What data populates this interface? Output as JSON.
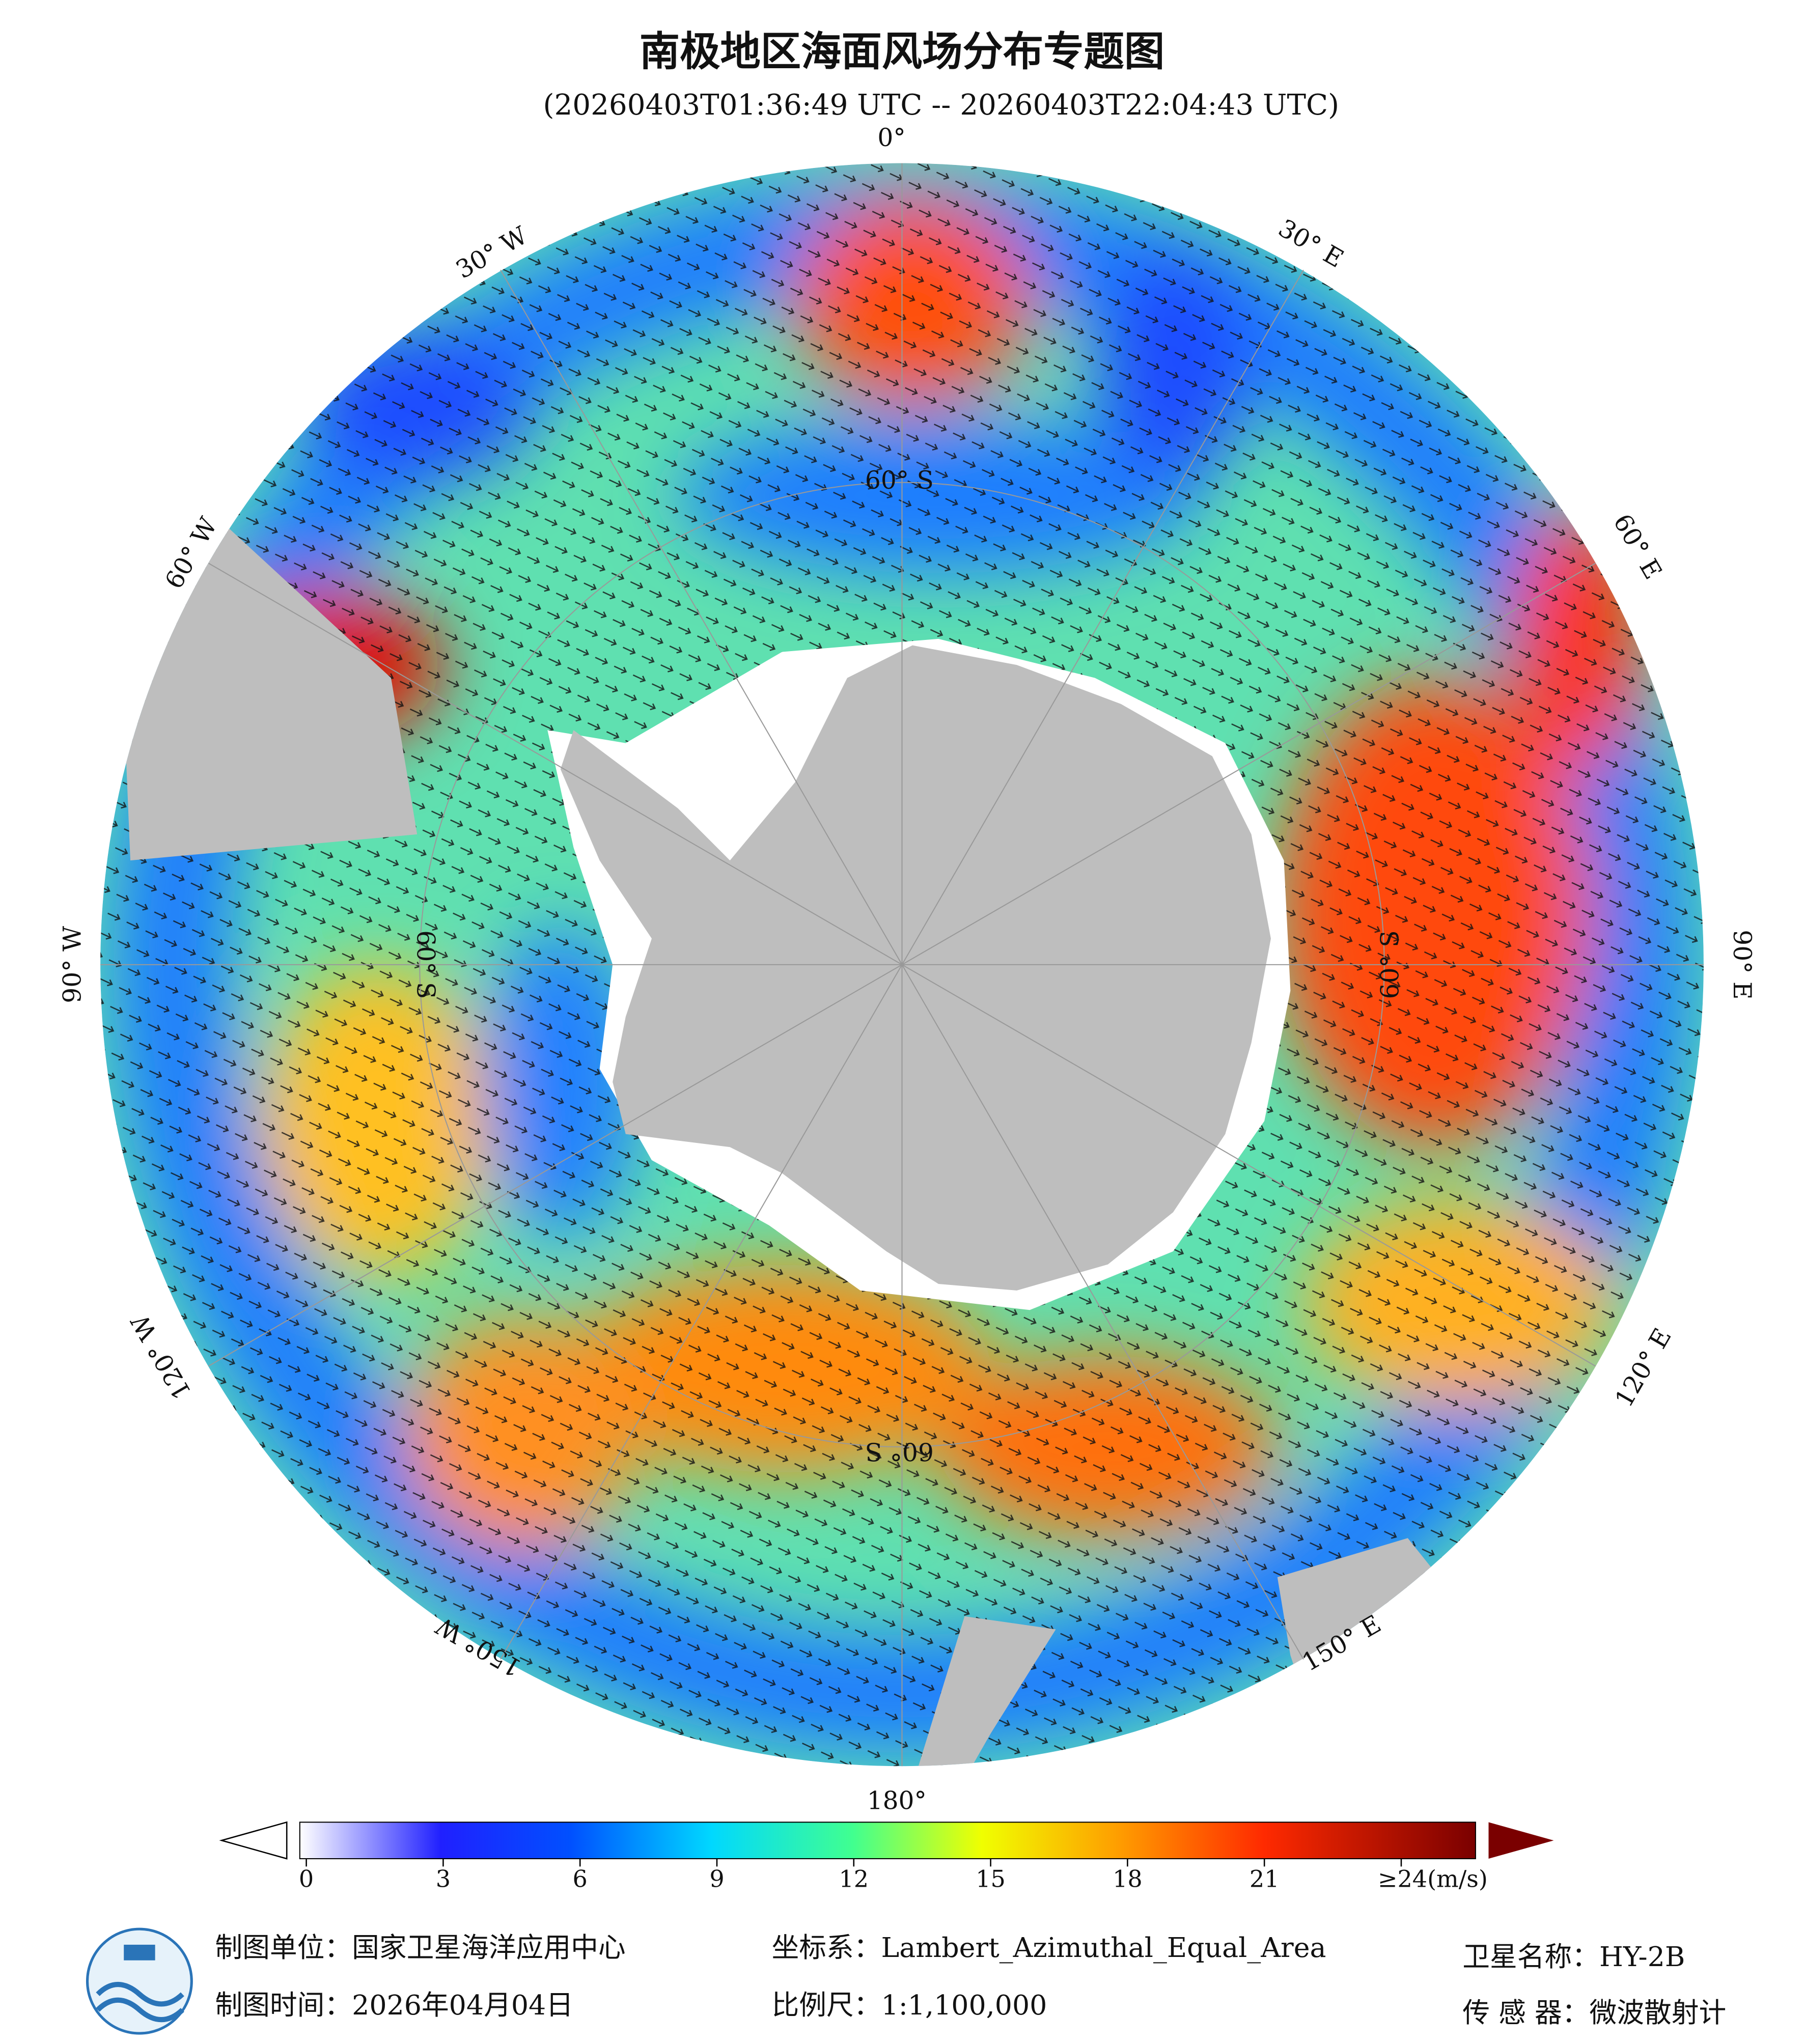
{
  "header": {
    "title": "南极地区海面风场分布专题图",
    "subtitle": "(20260403T01:36:49 UTC -- 20260403T22:04:43 UTC)"
  },
  "map": {
    "longitude_labels": [
      "0°",
      "30° E",
      "60° E",
      "90° E",
      "120° E",
      "150° E",
      "180°",
      "150° W",
      "120° W",
      "90° W",
      "60° W",
      "30° W"
    ],
    "latitude_labels": [
      "60° S",
      "60° S",
      "60° S",
      "60° S"
    ]
  },
  "colorbar": {
    "ticks": [
      0,
      3,
      6,
      9,
      12,
      15,
      18,
      21,
      {
        "value": 24,
        "label": "≥24(m/s)"
      }
    ]
  },
  "footer": {
    "unit": "制图单位：国家卫星海洋应用中心",
    "date": "制图时间：2026年04月04日",
    "crs": "坐标系：Lambert_Azimuthal_Equal_Area",
    "scale": "比例尺：1:1,100,000",
    "satellite": "卫星名称：HY-2B",
    "sensor": "传 感 器：微波散射计"
  }
}
